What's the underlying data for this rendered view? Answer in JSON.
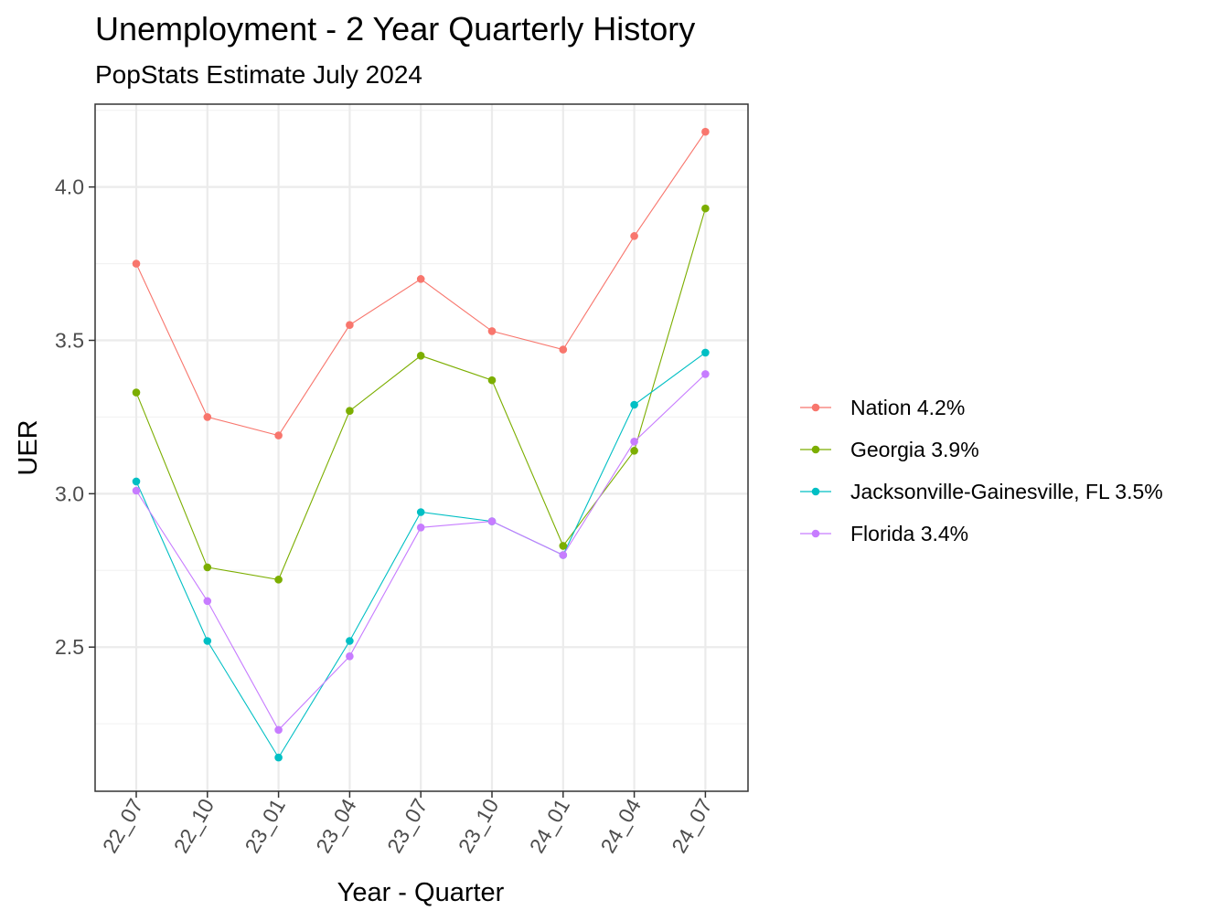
{
  "chart_data": {
    "type": "line",
    "title": "Unemployment - 2 Year Quarterly History",
    "subtitle": "PopStats Estimate July 2024",
    "xlabel": "Year - Quarter",
    "ylabel": "UER",
    "categories": [
      "22_07",
      "22_10",
      "23_01",
      "23_04",
      "23_07",
      "23_10",
      "24_01",
      "24_04",
      "24_07"
    ],
    "ylim": [
      2.03,
      4.27
    ],
    "yticks": [
      2.5,
      3.0,
      3.5,
      4.0
    ],
    "ytick_labels": [
      "2.5",
      "3.0",
      "3.5",
      "4.0"
    ],
    "grid": true,
    "legend_position": "right",
    "series": [
      {
        "name": "Nation 4.2%",
        "color": "#F8766D",
        "values": [
          3.75,
          3.25,
          3.19,
          3.55,
          3.7,
          3.53,
          3.47,
          3.84,
          4.18
        ]
      },
      {
        "name": "Georgia 3.9%",
        "color": "#7CAE00",
        "values": [
          3.33,
          2.76,
          2.72,
          3.27,
          3.45,
          3.37,
          2.83,
          3.14,
          3.93
        ]
      },
      {
        "name": "Jacksonville-Gainesville, FL 3.5%",
        "color": "#00BFC4",
        "values": [
          3.04,
          2.52,
          2.14,
          2.52,
          2.94,
          2.91,
          2.8,
          3.29,
          3.46
        ]
      },
      {
        "name": "Florida 3.4%",
        "color": "#C77CFF",
        "values": [
          3.01,
          2.65,
          2.23,
          2.47,
          2.89,
          2.91,
          2.8,
          3.17,
          3.39
        ]
      }
    ]
  }
}
